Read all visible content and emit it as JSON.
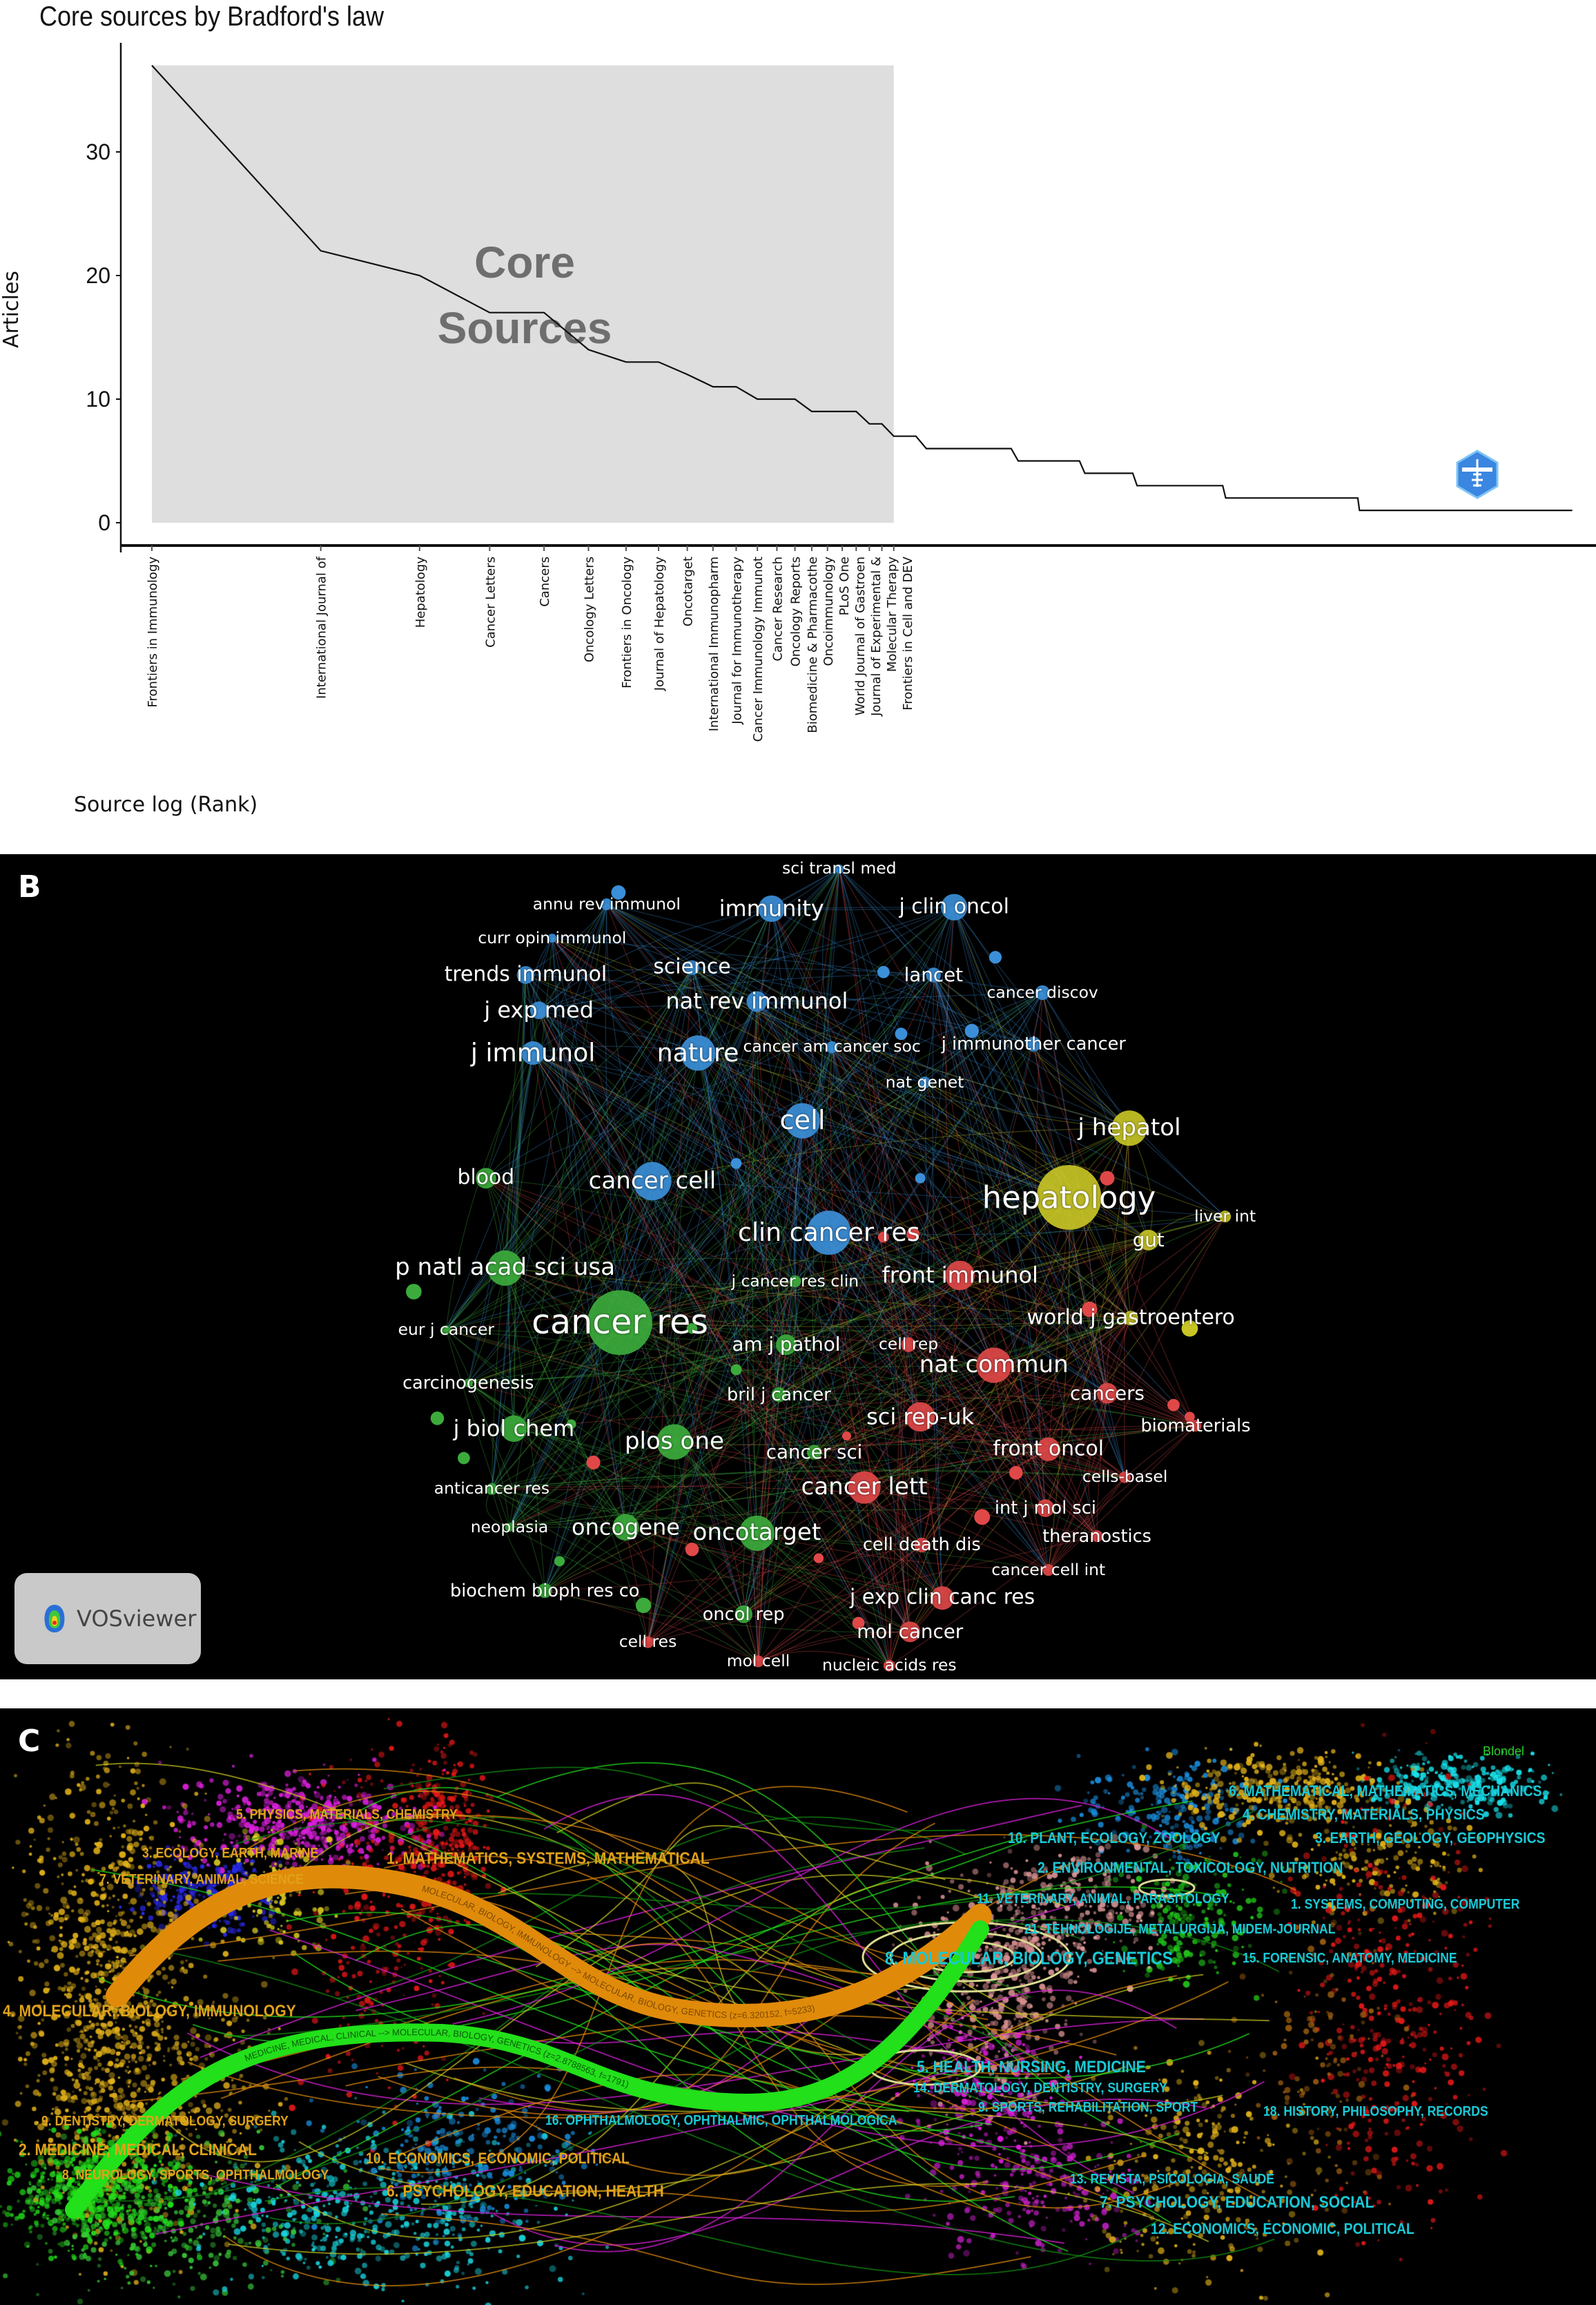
{
  "panel_a": {
    "chart_data": {
      "type": "line",
      "title": "Core sources by Bradford's law",
      "xlabel": "Source log (Rank)",
      "ylabel": "Articles",
      "x_scale": "log",
      "yticks": [
        0,
        10,
        20,
        30
      ],
      "ylim": [
        0,
        37
      ],
      "grid": false,
      "core_zone": {
        "from_rank": 1,
        "to_rank": 21,
        "label_line1": "Core",
        "label_line2": "Sources"
      },
      "categories": [
        "Frontiers in Immunology",
        "International Journal of",
        "Hepatology",
        "Cancer Letters",
        "Cancers",
        "Oncology Letters",
        "Frontiers in Oncology",
        "Journal of Hepatology",
        "Oncotarget",
        "International Immunopharm",
        "Journal for Immunotherapy",
        "Cancer Immunology Immunot",
        "Cancer Research",
        "Oncology Reports",
        "Biomedicine & Pharmacothe",
        "Oncoimmunology",
        "PLoS One",
        "World Journal of Gastroen",
        "Journal of Experimental &",
        "Molecular Therapy",
        "Frontiers in Cell and DEV"
      ],
      "values": [
        37,
        22,
        20,
        17,
        17,
        14,
        13,
        13,
        12,
        11,
        11,
        10,
        10,
        10,
        9,
        9,
        9,
        9,
        8,
        8,
        7
      ],
      "tail_points": [
        {
          "rank": 23,
          "articles": 7
        },
        {
          "rank": 24,
          "articles": 6
        },
        {
          "rank": 34,
          "articles": 6
        },
        {
          "rank": 35,
          "articles": 5
        },
        {
          "rank": 45,
          "articles": 5
        },
        {
          "rank": 46,
          "articles": 4
        },
        {
          "rank": 56,
          "articles": 4
        },
        {
          "rank": 57,
          "articles": 3
        },
        {
          "rank": 81,
          "articles": 3
        },
        {
          "rank": 82,
          "articles": 2
        },
        {
          "rank": 141,
          "articles": 2
        },
        {
          "rank": 142,
          "articles": 1
        },
        {
          "rank": 340,
          "articles": 1
        }
      ]
    },
    "colors": {
      "zone": "#dedede",
      "line": "#111111",
      "zone_text": "#6e6e6e"
    }
  },
  "panel_b": {
    "letter": "B",
    "vosviewer_label": "VOSviewer",
    "nodes": [
      {
        "label": "sci transl med",
        "cluster": "blue"
      },
      {
        "label": "annu rev immunol",
        "cluster": "blue"
      },
      {
        "label": "immunity",
        "cluster": "blue"
      },
      {
        "label": "j clin oncol",
        "cluster": "blue"
      },
      {
        "label": "curr opin immunol",
        "cluster": "blue"
      },
      {
        "label": "trends immunol",
        "cluster": "blue"
      },
      {
        "label": "science",
        "cluster": "blue"
      },
      {
        "label": "lancet",
        "cluster": "blue"
      },
      {
        "label": "cancer discov",
        "cluster": "blue"
      },
      {
        "label": "j exp med",
        "cluster": "blue"
      },
      {
        "label": "nat rev immunol",
        "cluster": "blue"
      },
      {
        "label": "cancer am cancer soc",
        "cluster": "blue"
      },
      {
        "label": "j immunother cancer",
        "cluster": "blue"
      },
      {
        "label": "j immunol",
        "cluster": "blue"
      },
      {
        "label": "nature",
        "cluster": "blue"
      },
      {
        "label": "nat genet",
        "cluster": "blue"
      },
      {
        "label": "cell",
        "cluster": "blue"
      },
      {
        "label": "j hepatol",
        "cluster": "yellow"
      },
      {
        "label": "blood",
        "cluster": "green"
      },
      {
        "label": "cancer cell",
        "cluster": "blue"
      },
      {
        "label": "hepatology",
        "cluster": "yellow"
      },
      {
        "label": "liver int",
        "cluster": "yellow"
      },
      {
        "label": "gut",
        "cluster": "yellow"
      },
      {
        "label": "clin cancer res",
        "cluster": "blue"
      },
      {
        "label": "p natl acad sci usa",
        "cluster": "green"
      },
      {
        "label": "front immunol",
        "cluster": "red"
      },
      {
        "label": "cancer res",
        "cluster": "green"
      },
      {
        "label": "j cancer res clin",
        "cluster": "green"
      },
      {
        "label": "eur j cancer",
        "cluster": "green"
      },
      {
        "label": "world j gastroentero",
        "cluster": "yellow"
      },
      {
        "label": "am j pathol",
        "cluster": "green"
      },
      {
        "label": "cell rep",
        "cluster": "red"
      },
      {
        "label": "carcinogenesis",
        "cluster": "green"
      },
      {
        "label": "nat commun",
        "cluster": "red"
      },
      {
        "label": "bril j cancer",
        "cluster": "green"
      },
      {
        "label": "cancers",
        "cluster": "red"
      },
      {
        "label": "j biol chem",
        "cluster": "green"
      },
      {
        "label": "sci rep-uk",
        "cluster": "red"
      },
      {
        "label": "biomaterials",
        "cluster": "red"
      },
      {
        "label": "plos one",
        "cluster": "green"
      },
      {
        "label": "front oncol",
        "cluster": "red"
      },
      {
        "label": "cancer sci",
        "cluster": "green"
      },
      {
        "label": "cells-basel",
        "cluster": "red"
      },
      {
        "label": "anticancer res",
        "cluster": "green"
      },
      {
        "label": "cancer lett",
        "cluster": "red"
      },
      {
        "label": "int j mol sci",
        "cluster": "red"
      },
      {
        "label": "neoplasia",
        "cluster": "green"
      },
      {
        "label": "oncogene",
        "cluster": "green"
      },
      {
        "label": "oncotarget",
        "cluster": "green"
      },
      {
        "label": "theranostics",
        "cluster": "red"
      },
      {
        "label": "cell death dis",
        "cluster": "red"
      },
      {
        "label": "cancer cell int",
        "cluster": "red"
      },
      {
        "label": "biochem bioph res co",
        "cluster": "green"
      },
      {
        "label": "j exp clin canc res",
        "cluster": "red"
      },
      {
        "label": "oncol rep",
        "cluster": "green"
      },
      {
        "label": "mol cancer",
        "cluster": "red"
      },
      {
        "label": "cell res",
        "cluster": "red"
      },
      {
        "label": "mol cell",
        "cluster": "red"
      },
      {
        "label": "nucleic acids res",
        "cluster": "red"
      }
    ],
    "cluster_colors": {
      "blue": "#3b8fd8",
      "green": "#3cab3c",
      "red": "#e04848",
      "yellow": "#c8c426"
    }
  },
  "panel_c": {
    "letter": "C",
    "corner_label": "Blondel",
    "left_labels": [
      "5. PHYSICS, MATERIALS, CHEMISTRY",
      "3. ECOLOGY, EARTH, MARINE",
      "7. VETERINARY, ANIMAL, SCIENCE",
      "1. MATHEMATICS, SYSTEMS, MATHEMATICAL",
      "4. MOLECULAR, BIOLOGY, IMMUNOLOGY",
      "9. DENTISTRY, DERMATOLOGY, SURGERY",
      "2. MEDICINE, MEDICAL, CLINICAL",
      "8. NEUROLOGY, SPORTS, OPHTHALMOLOGY",
      "10. ECONOMICS, ECONOMIC, POLITICAL",
      "6. PSYCHOLOGY, EDUCATION, HEALTH"
    ],
    "right_labels": [
      "16. OPHTHALMOLOGY, OPHTHALMIC, OPHTHALMOLOGICA",
      "4. CHEMISTRY, MATERIALS, PHYSICS",
      "6. MATHEMATICAL, MATHEMATICS, MECHANICS",
      "10. PLANT, ECOLOGY, ZOOLOGY",
      "3. EARTH, GEOLOGY, GEOPHYSICS",
      "2. ENVIRONMENTAL, TOXICOLOGY, NUTRITION",
      "11. VETERINARY, ANIMAL, PARASITOLOGY",
      "1. SYSTEMS, COMPUTING, COMPUTER",
      "21. TEHNOLOGIJE, METALURGIJA, MIDEM-JOURNAL",
      "8. MOLECULAR, BIOLOGY, GENETICS",
      "15. FORENSIC, ANATOMY, MEDICINE",
      "5. HEALTH, NURSING, MEDICINE",
      "14. DERMATOLOGY, DENTISTRY, SURGERY",
      "9. SPORTS, REHABILITATION, SPORT",
      "18. HISTORY, PHILOSOPHY, RECORDS",
      "13. REVISTA, PSICOLOGIA, SAUDE",
      "7. PSYCHOLOGY, EDUCATION, SOCIAL",
      "12. ECONOMICS, ECONOMIC, POLITICAL"
    ],
    "bands": [
      {
        "label": "MOLECULAR, BIOLOGY, IMMUNOLOGY --> MOLECULAR, BIOLOGY, GENETICS (z=6.320152, f=5233)",
        "color": "#e08a0a"
      },
      {
        "label": "MEDICINE, MEDICAL, CLINICAL --> MOLECULAR, BIOLOGY, GENETICS (z=2.8788563, f=1791)",
        "color": "#22e01a"
      }
    ]
  }
}
